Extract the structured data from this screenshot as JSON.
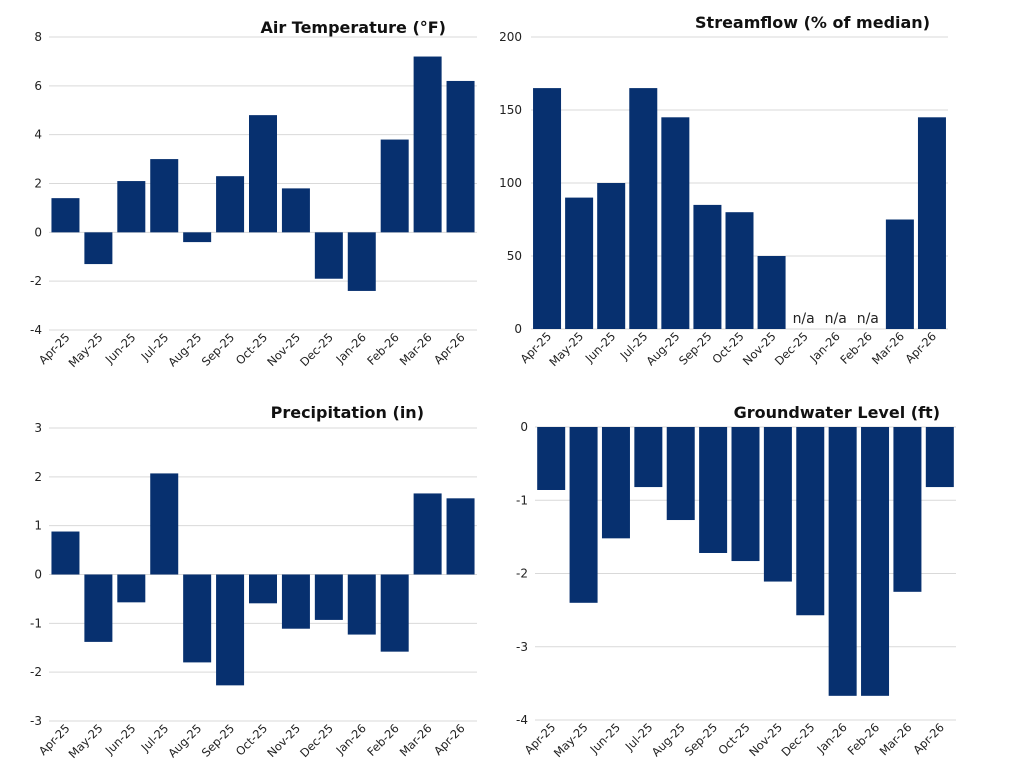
{
  "colors": {
    "bar": "#07306F",
    "grid": "#D9D9D9",
    "text": "#111111"
  },
  "chart_data": [
    {
      "type": "bar",
      "title": "Air Temperature  (°F)",
      "categories": [
        "Apr-25",
        "May-25",
        "Jun-25",
        "Jul-25",
        "Aug-25",
        "Sep-25",
        "Oct-25",
        "Nov-25",
        "Dec-25",
        "Jan-26",
        "Feb-26",
        "Mar-26",
        "Apr-26"
      ],
      "values": [
        1.4,
        -1.3,
        2.1,
        3.0,
        -0.4,
        2.3,
        4.8,
        1.8,
        -1.9,
        -2.4,
        3.8,
        7.2,
        6.2
      ],
      "ylim": [
        -4,
        8
      ],
      "yticks": [
        "8",
        "6",
        "4",
        "2",
        "0",
        "-2",
        "-4"
      ],
      "grid": true
    },
    {
      "type": "bar",
      "title": "Streamflow (% of median)",
      "categories": [
        "Apr-25",
        "May-25",
        "Jun-25",
        "Jul-25",
        "Aug-25",
        "Sep-25",
        "Oct-25",
        "Nov-25",
        "Dec-25",
        "Jan-26",
        "Feb-26",
        "Mar-26",
        "Apr-26"
      ],
      "values": [
        165,
        90,
        100,
        165,
        145,
        85,
        80,
        50,
        null,
        null,
        null,
        75,
        145
      ],
      "missing_label": "n/a",
      "ylim": [
        0,
        200
      ],
      "yticks": [
        "200",
        "150",
        "100",
        "50",
        "0"
      ],
      "grid": true
    },
    {
      "type": "bar",
      "title": "Precipitation (in)",
      "categories": [
        "Apr-25",
        "May-25",
        "Jun-25",
        "Jul-25",
        "Aug-25",
        "Sep-25",
        "Oct-25",
        "Nov-25",
        "Dec-25",
        "Jan-26",
        "Feb-26",
        "Mar-26",
        "Apr-26"
      ],
      "values": [
        0.88,
        -1.38,
        -0.57,
        2.07,
        -1.8,
        -2.27,
        -0.59,
        -1.11,
        -0.93,
        -1.23,
        -1.58,
        1.66,
        1.56
      ],
      "ylim": [
        -3,
        3
      ],
      "yticks": [
        "3",
        "2",
        "1",
        "0",
        "-1",
        "-2",
        "-3"
      ],
      "grid": true
    },
    {
      "type": "bar",
      "title": "Groundwater Level (ft)",
      "categories": [
        "Apr-25",
        "May-25",
        "Jun-25",
        "Jul-25",
        "Aug-25",
        "Sep-25",
        "Oct-25",
        "Nov-25",
        "Dec-25",
        "Jan-26",
        "Feb-26",
        "Mar-26",
        "Apr-26"
      ],
      "values": [
        -0.86,
        -2.4,
        -1.52,
        -0.82,
        -1.27,
        -1.72,
        -1.83,
        -2.11,
        -2.57,
        -3.67,
        -3.67,
        -2.25,
        -0.82
      ],
      "ylim": [
        -4,
        0
      ],
      "yticks": [
        "0",
        "-1",
        "-2",
        "-3",
        "-4"
      ],
      "grid": true
    }
  ]
}
